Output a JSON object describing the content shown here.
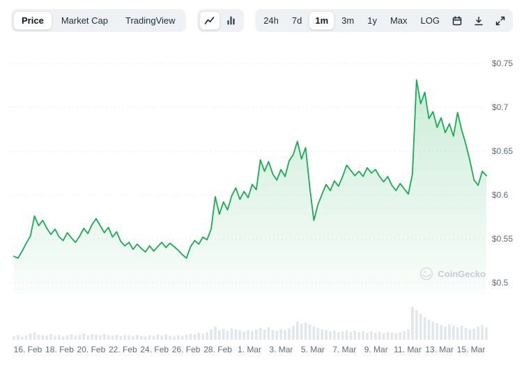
{
  "toolbar": {
    "chart_type_tabs": [
      {
        "label": "Price",
        "active": true
      },
      {
        "label": "Market Cap",
        "active": false
      },
      {
        "label": "TradingView",
        "active": false
      }
    ],
    "chart_style_toggle": [
      {
        "icon": "line-chart-icon",
        "active": true
      },
      {
        "icon": "bar-chart-icon",
        "active": false
      }
    ],
    "range_buttons": [
      {
        "label": "24h",
        "active": false
      },
      {
        "label": "7d",
        "active": false
      },
      {
        "label": "1m",
        "active": true
      },
      {
        "label": "3m",
        "active": false
      },
      {
        "label": "1y",
        "active": false
      },
      {
        "label": "Max",
        "active": false
      },
      {
        "label": "LOG",
        "active": false
      }
    ],
    "action_icons": [
      "calendar-icon",
      "download-icon",
      "expand-icon"
    ]
  },
  "watermark_label": "CoinGecko",
  "chart_data": {
    "type": "line",
    "title": "Price chart, 1 month",
    "line_color": "#18ab52",
    "fill_color": "#18ab52",
    "grid": "dashed-horizontal",
    "legend": "none",
    "y_axis": {
      "side": "right",
      "range": [
        0.5,
        0.75
      ],
      "tick_values": [
        0.75,
        0.7,
        0.65,
        0.6,
        0.55,
        0.5
      ],
      "tick_labels": [
        "$0.75",
        "$0.7",
        "$0.65",
        "$0.6",
        "$0.55",
        "$0.5"
      ]
    },
    "x_axis": {
      "tick_labels": [
        "16. Feb",
        "18. Feb",
        "20. Feb",
        "22. Feb",
        "24. Feb",
        "26. Feb",
        "28. Feb",
        "1. Mar",
        "3. Mar",
        "5. Mar",
        "7. Mar",
        "9. Mar",
        "11. Mar",
        "13. Mar",
        "15. Mar"
      ]
    },
    "series": [
      {
        "name": "price_usd",
        "values": [
          0.53,
          0.528,
          0.536,
          0.545,
          0.553,
          0.576,
          0.565,
          0.571,
          0.562,
          0.555,
          0.561,
          0.552,
          0.548,
          0.557,
          0.551,
          0.546,
          0.553,
          0.562,
          0.556,
          0.566,
          0.573,
          0.565,
          0.557,
          0.563,
          0.552,
          0.558,
          0.547,
          0.542,
          0.546,
          0.538,
          0.544,
          0.539,
          0.535,
          0.542,
          0.536,
          0.541,
          0.546,
          0.54,
          0.545,
          0.541,
          0.537,
          0.532,
          0.528,
          0.541,
          0.548,
          0.544,
          0.552,
          0.549,
          0.561,
          0.598,
          0.578,
          0.592,
          0.583,
          0.599,
          0.608,
          0.595,
          0.604,
          0.597,
          0.612,
          0.606,
          0.64,
          0.627,
          0.638,
          0.624,
          0.617,
          0.629,
          0.621,
          0.639,
          0.646,
          0.661,
          0.641,
          0.654,
          0.609,
          0.571,
          0.589,
          0.601,
          0.612,
          0.605,
          0.616,
          0.61,
          0.621,
          0.634,
          0.628,
          0.622,
          0.627,
          0.621,
          0.631,
          0.625,
          0.629,
          0.621,
          0.615,
          0.621,
          0.611,
          0.605,
          0.613,
          0.607,
          0.601,
          0.624,
          0.731,
          0.704,
          0.717,
          0.687,
          0.695,
          0.677,
          0.688,
          0.671,
          0.681,
          0.667,
          0.694,
          0.674,
          0.658,
          0.639,
          0.617,
          0.611,
          0.627,
          0.622
        ]
      }
    ],
    "volume_bars": {
      "color": "#e2e7ec",
      "values": [
        0.1,
        0.14,
        0.09,
        0.12,
        0.18,
        0.22,
        0.15,
        0.13,
        0.12,
        0.16,
        0.11,
        0.14,
        0.1,
        0.13,
        0.16,
        0.11,
        0.14,
        0.18,
        0.13,
        0.16,
        0.15,
        0.12,
        0.17,
        0.13,
        0.11,
        0.14,
        0.1,
        0.13,
        0.12,
        0.1,
        0.14,
        0.11,
        0.1,
        0.13,
        0.11,
        0.15,
        0.12,
        0.16,
        0.12,
        0.1,
        0.13,
        0.11,
        0.15,
        0.18,
        0.16,
        0.2,
        0.17,
        0.22,
        0.3,
        0.38,
        0.28,
        0.32,
        0.26,
        0.33,
        0.3,
        0.27,
        0.24,
        0.28,
        0.25,
        0.3,
        0.34,
        0.3,
        0.36,
        0.28,
        0.26,
        0.31,
        0.28,
        0.33,
        0.4,
        0.52,
        0.46,
        0.5,
        0.44,
        0.38,
        0.34,
        0.3,
        0.28,
        0.24,
        0.27,
        0.22,
        0.24,
        0.28,
        0.22,
        0.26,
        0.22,
        0.25,
        0.2,
        0.24,
        0.2,
        0.23,
        0.19,
        0.22,
        0.21,
        0.18,
        0.22,
        0.25,
        0.3,
        0.95,
        0.85,
        0.75,
        0.65,
        0.58,
        0.52,
        0.48,
        0.42,
        0.38,
        0.44,
        0.4,
        0.36,
        0.4,
        0.34,
        0.3,
        0.32,
        0.38,
        0.42,
        0.36
      ]
    }
  }
}
